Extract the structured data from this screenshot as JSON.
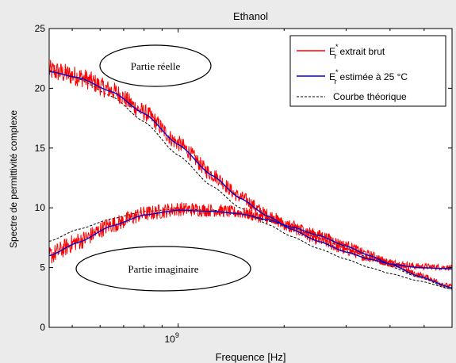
{
  "chart_data": {
    "type": "line",
    "title": "Ethanol",
    "xlabel": "Frequence [Hz]",
    "ylabel": "Spectre de permittivité complexe",
    "x_scale": "log",
    "xlim": [
      430000000,
      6000000000
    ],
    "ylim": [
      0,
      25
    ],
    "x_ticks": [
      {
        "value": 1000000000,
        "base": "10",
        "exp": "9"
      }
    ],
    "y_ticks": [
      0,
      5,
      10,
      15,
      20,
      25
    ],
    "grid": false,
    "legend_position": "top-right",
    "legend": [
      {
        "base": "E",
        "sup": "*",
        "sub": "r",
        "text": "extrait brut",
        "color": "#ff0000",
        "style": "solid"
      },
      {
        "base": "E",
        "sup": "*",
        "sub": "r",
        "text": "estimée à 25 °C",
        "color": "#0000cc",
        "style": "solid"
      },
      {
        "base": "",
        "sup": "",
        "sub": "",
        "text": "Courbe théorique",
        "color": "#000000",
        "style": "dashed"
      }
    ],
    "annotations": [
      {
        "text": "Partie réelle",
        "x": 700000000,
        "y": 21.9
      },
      {
        "text": "Partie imaginaire",
        "x": 700000000,
        "y": 5.0
      }
    ],
    "series": [
      {
        "part": "real",
        "kind": "raw",
        "color": "#ff0000",
        "x": [
          430000000,
          520000000,
          650000000,
          800000000,
          1000000000,
          1250000000,
          1500000000,
          1800000000,
          2100000000,
          2500000000,
          3000000000,
          3500000000,
          4000000000,
          4800000000,
          6000000000
        ],
        "values": [
          21.5,
          21.0,
          19.8,
          18.0,
          15.4,
          12.8,
          10.9,
          9.4,
          8.3,
          7.3,
          6.4,
          5.8,
          5.4,
          5.1,
          5.0
        ]
      },
      {
        "part": "real",
        "kind": "fit",
        "color": "#0000cc",
        "x": [
          430000000,
          520000000,
          650000000,
          800000000,
          1000000000,
          1250000000,
          1500000000,
          1800000000,
          2100000000,
          2500000000,
          3000000000,
          3500000000,
          4000000000,
          4800000000,
          6000000000
        ],
        "values": [
          21.4,
          20.9,
          19.7,
          17.9,
          15.3,
          12.7,
          10.8,
          9.3,
          8.2,
          7.2,
          6.3,
          5.7,
          5.3,
          5.0,
          4.9
        ]
      },
      {
        "part": "real",
        "kind": "theory",
        "color": "#000000",
        "x": [
          430000000,
          520000000,
          650000000,
          800000000,
          1000000000,
          1250000000,
          1500000000,
          1800000000,
          2100000000,
          2500000000,
          3000000000,
          3500000000,
          4000000000,
          4800000000,
          6000000000
        ],
        "values": [
          21.5,
          20.8,
          19.3,
          17.2,
          14.4,
          11.8,
          10.0,
          8.6,
          7.6,
          6.6,
          5.7,
          5.0,
          4.5,
          3.9,
          3.2
        ]
      },
      {
        "part": "imaginary",
        "kind": "raw",
        "color": "#ff0000",
        "x": [
          430000000,
          520000000,
          650000000,
          800000000,
          1000000000,
          1250000000,
          1500000000,
          1800000000,
          2100000000,
          2500000000,
          3000000000,
          3500000000,
          4000000000,
          4800000000,
          6000000000
        ],
        "values": [
          6.0,
          7.2,
          8.6,
          9.5,
          9.9,
          9.8,
          9.6,
          9.1,
          8.5,
          7.8,
          6.9,
          6.1,
          5.4,
          4.4,
          3.4
        ]
      },
      {
        "part": "imaginary",
        "kind": "fit",
        "color": "#0000cc",
        "x": [
          430000000,
          520000000,
          650000000,
          800000000,
          1000000000,
          1250000000,
          1500000000,
          1800000000,
          2100000000,
          2500000000,
          3000000000,
          3500000000,
          4000000000,
          4800000000,
          6000000000
        ],
        "values": [
          6.0,
          7.1,
          8.5,
          9.4,
          9.8,
          9.7,
          9.5,
          9.0,
          8.4,
          7.7,
          6.8,
          6.0,
          5.3,
          4.3,
          3.3
        ]
      },
      {
        "part": "imaginary",
        "kind": "theory",
        "color": "#000000",
        "x": [
          430000000,
          520000000,
          650000000,
          800000000,
          1000000000,
          1250000000,
          1500000000,
          1800000000,
          2100000000,
          2500000000,
          3000000000,
          3500000000,
          4000000000,
          4800000000,
          6000000000
        ],
        "values": [
          7.2,
          8.2,
          9.1,
          9.7,
          9.9,
          9.8,
          9.5,
          8.9,
          8.3,
          7.5,
          6.6,
          5.8,
          5.1,
          4.2,
          3.2
        ]
      }
    ]
  }
}
